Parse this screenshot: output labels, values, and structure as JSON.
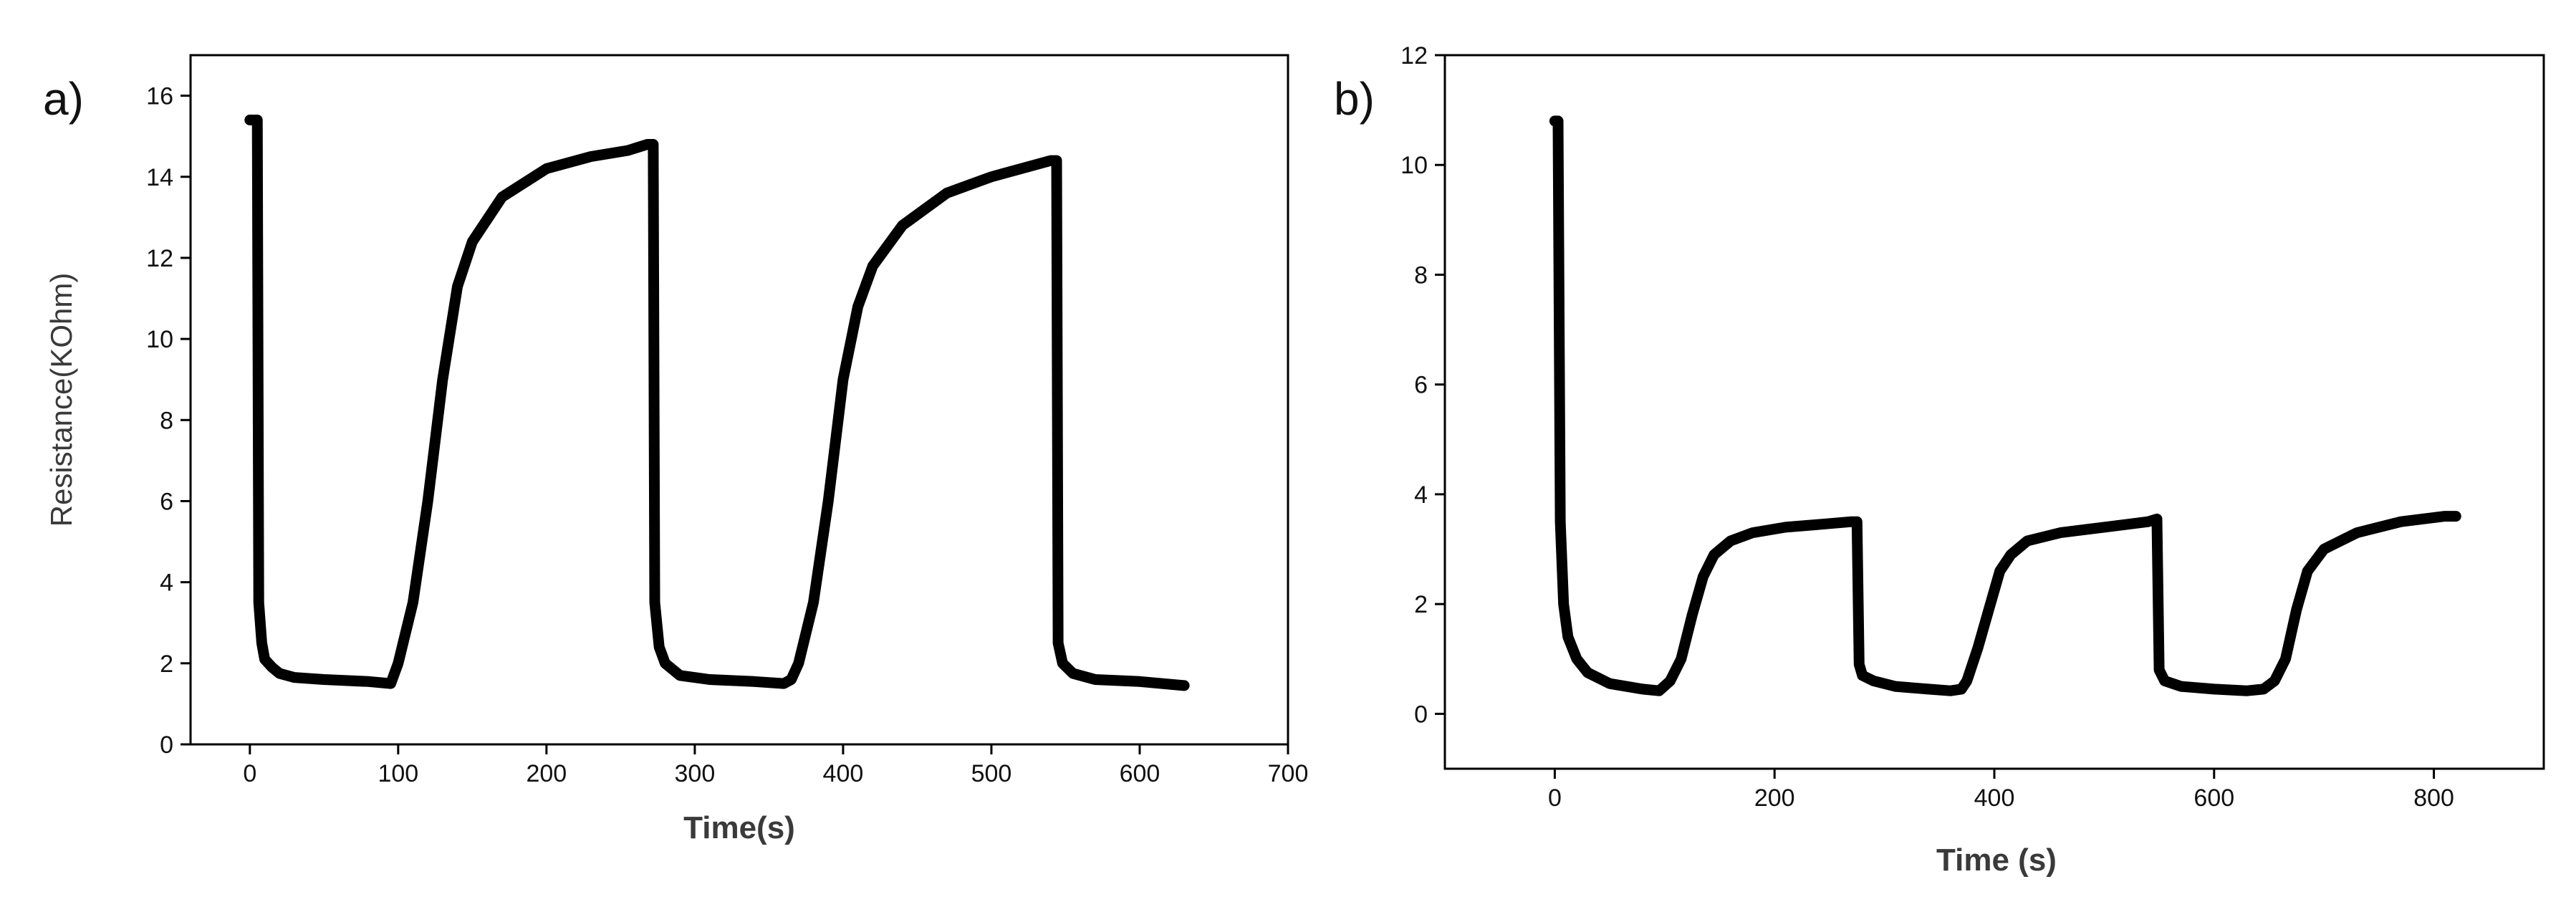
{
  "chart_data": [
    {
      "type": "line",
      "panel_label": "a)",
      "title": "",
      "xlabel": "Time(s)",
      "ylabel": "Resistance(KOhm)",
      "xlim": [
        -40,
        700
      ],
      "ylim": [
        0,
        17
      ],
      "x_ticks": [
        0,
        100,
        200,
        300,
        400,
        500,
        600,
        700
      ],
      "x_tick_labels": [
        "0",
        "100",
        "200",
        "300",
        "400",
        "500",
        "600",
        "700"
      ],
      "y_ticks": [
        0,
        2,
        4,
        6,
        8,
        10,
        12,
        14,
        16
      ],
      "y_tick_labels": [
        "0",
        "2",
        "4",
        "6",
        "8",
        "10",
        "12",
        "14",
        "16"
      ],
      "grid": false,
      "frame": "box",
      "series": [
        {
          "x": [
            0,
            5,
            6,
            8,
            10,
            15,
            20,
            30,
            50,
            80,
            95,
            100,
            110,
            120,
            130,
            140,
            150,
            170,
            200,
            230,
            255,
            268,
            272,
            273,
            276,
            280,
            290,
            310,
            340,
            360,
            365,
            370,
            380,
            390,
            400,
            410,
            420,
            440,
            470,
            500,
            525,
            540,
            544,
            545,
            548,
            555,
            570,
            600,
            630
          ],
          "y": [
            15.4,
            15.4,
            3.5,
            2.5,
            2.1,
            1.9,
            1.75,
            1.65,
            1.6,
            1.55,
            1.5,
            2.0,
            3.5,
            6.0,
            9.0,
            11.3,
            12.4,
            13.5,
            14.2,
            14.5,
            14.65,
            14.8,
            14.8,
            3.5,
            2.4,
            2.0,
            1.7,
            1.6,
            1.55,
            1.5,
            1.6,
            2.0,
            3.5,
            6.0,
            9.0,
            10.8,
            11.8,
            12.8,
            13.6,
            14.0,
            14.25,
            14.4,
            14.4,
            2.5,
            2.0,
            1.75,
            1.6,
            1.55,
            1.45
          ]
        }
      ]
    },
    {
      "type": "line",
      "panel_label": "b)",
      "title": "",
      "xlabel": "Time (s)",
      "ylabel": "",
      "xlim": [
        -100,
        900
      ],
      "ylim": [
        -1,
        12
      ],
      "x_ticks": [
        0,
        200,
        400,
        600,
        800
      ],
      "x_tick_labels": [
        "0",
        "200",
        "400",
        "600",
        "800"
      ],
      "y_ticks": [
        0,
        2,
        4,
        6,
        8,
        10,
        12
      ],
      "y_tick_labels": [
        "0",
        "2",
        "4",
        "6",
        "8",
        "10",
        "12"
      ],
      "grid": false,
      "frame": "box",
      "series": [
        {
          "x": [
            0,
            3,
            5,
            8,
            12,
            20,
            30,
            50,
            80,
            95,
            105,
            115,
            125,
            135,
            145,
            160,
            180,
            210,
            240,
            270,
            275,
            277,
            280,
            290,
            310,
            340,
            360,
            370,
            375,
            385,
            395,
            405,
            415,
            430,
            460,
            500,
            540,
            548,
            550,
            555,
            570,
            600,
            630,
            645,
            655,
            665,
            675,
            685,
            700,
            730,
            770,
            810,
            820
          ],
          "y": [
            10.8,
            10.8,
            3.5,
            2.0,
            1.4,
            1.0,
            0.75,
            0.55,
            0.45,
            0.42,
            0.6,
            1.0,
            1.8,
            2.5,
            2.9,
            3.15,
            3.3,
            3.4,
            3.45,
            3.5,
            3.5,
            0.9,
            0.7,
            0.6,
            0.5,
            0.45,
            0.42,
            0.45,
            0.6,
            1.2,
            1.9,
            2.6,
            2.9,
            3.15,
            3.3,
            3.4,
            3.5,
            3.55,
            0.8,
            0.6,
            0.5,
            0.45,
            0.42,
            0.45,
            0.6,
            1.0,
            1.9,
            2.6,
            3.0,
            3.3,
            3.5,
            3.6,
            3.6
          ]
        }
      ]
    }
  ]
}
